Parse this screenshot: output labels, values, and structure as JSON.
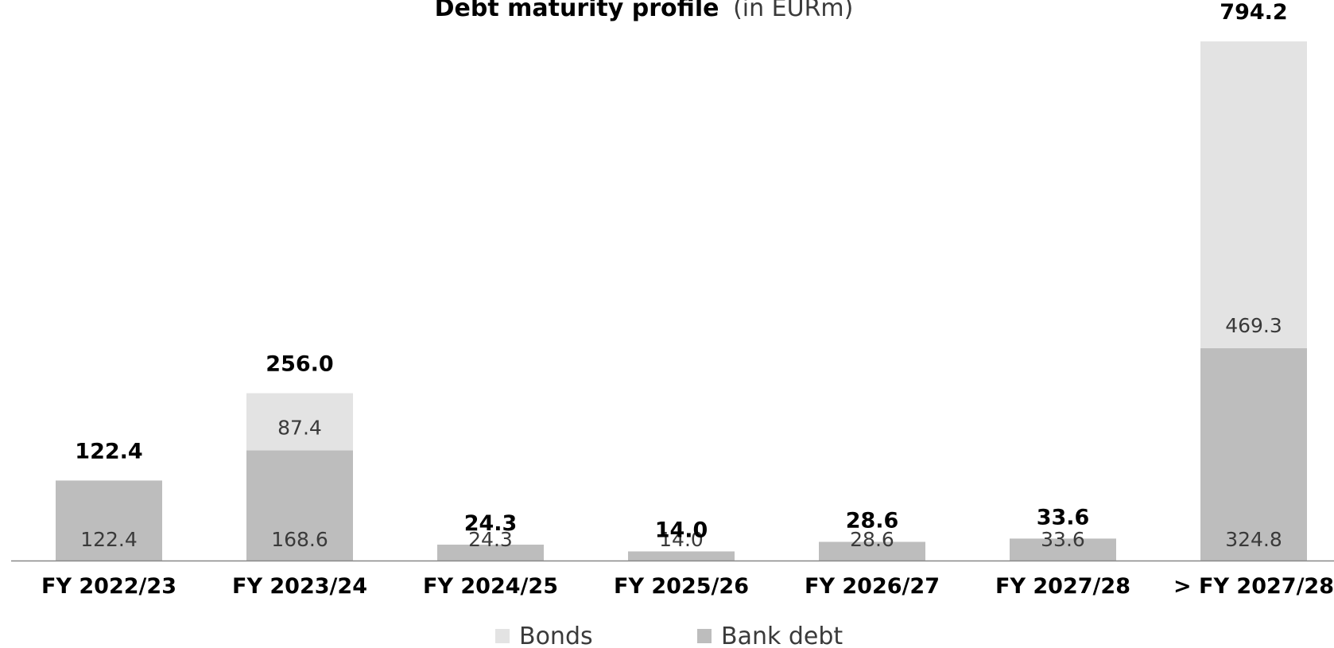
{
  "chart_data": {
    "type": "bar",
    "stacked": true,
    "title": "Debt maturity profile",
    "subtitle": "(in EURm)",
    "categories": [
      "FY 2022/23",
      "FY 2023/24",
      "FY 2024/25",
      "FY 2025/26",
      "FY 2026/27",
      "FY 2027/28",
      "> FY 2027/28"
    ],
    "series": [
      {
        "name": "Bank debt",
        "color": "#bdbdbd",
        "values": [
          122.4,
          168.6,
          24.3,
          14.0,
          28.6,
          33.6,
          324.8
        ],
        "labels": [
          "122.4",
          "168.6",
          "24.3",
          "14.0",
          "28.6",
          "33.6",
          "324.8"
        ]
      },
      {
        "name": "Bonds",
        "color": "#e3e3e3",
        "values": [
          0,
          87.4,
          0,
          0,
          0,
          0,
          469.3
        ],
        "labels": [
          "",
          "87.4",
          "",
          "",
          "",
          "",
          "469.3"
        ]
      }
    ],
    "totals": [
      122.4,
      256.0,
      24.3,
      14.0,
      28.6,
      33.6,
      794.2
    ],
    "total_labels": [
      "122.4",
      "256.0",
      "24.3",
      "14.0",
      "28.6",
      "33.6",
      "794.2"
    ],
    "ylim": [
      0,
      794.2
    ],
    "grid": false,
    "legend": {
      "position": "bottom",
      "order": [
        "Bonds",
        "Bank debt"
      ]
    },
    "axis_color": "#888888"
  }
}
